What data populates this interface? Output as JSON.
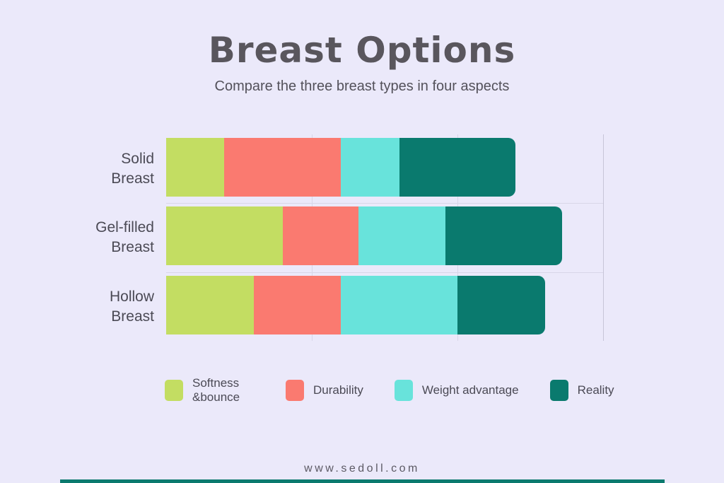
{
  "page": {
    "background_color": "#EBE9FA",
    "bottom_strip_color": "#0B7A6E"
  },
  "header": {
    "title": "Breast Options",
    "subtitle": "Compare the three breast types in four aspects"
  },
  "chart_data": {
    "type": "bar",
    "orientation": "horizontal",
    "stacked": true,
    "title": "Breast Options",
    "subtitle": "Compare the three breast types in four aspects",
    "categories": [
      "Solid Breast",
      "Gel-filled Breast",
      "Hollow Breast"
    ],
    "series": [
      {
        "name": "Softness &bounce",
        "color": "#C3DD62",
        "values": [
          2,
          4,
          3
        ]
      },
      {
        "name": "Durability",
        "color": "#FA7A70",
        "values": [
          4,
          2.6,
          3
        ]
      },
      {
        "name": "Weight advantage",
        "color": "#68E3DB",
        "values": [
          2,
          3,
          4
        ]
      },
      {
        "name": "Reality",
        "color": "#0A7A6E",
        "values": [
          4,
          4,
          3
        ]
      }
    ],
    "totals": [
      12,
      13.6,
      13
    ],
    "xlim": [
      0,
      15
    ],
    "gridline_values": [
      5,
      10,
      15
    ],
    "grid": true,
    "legend_position": "bottom",
    "xlabel": "",
    "ylabel": ""
  },
  "footer": {
    "website": "www.sedoll.com"
  }
}
